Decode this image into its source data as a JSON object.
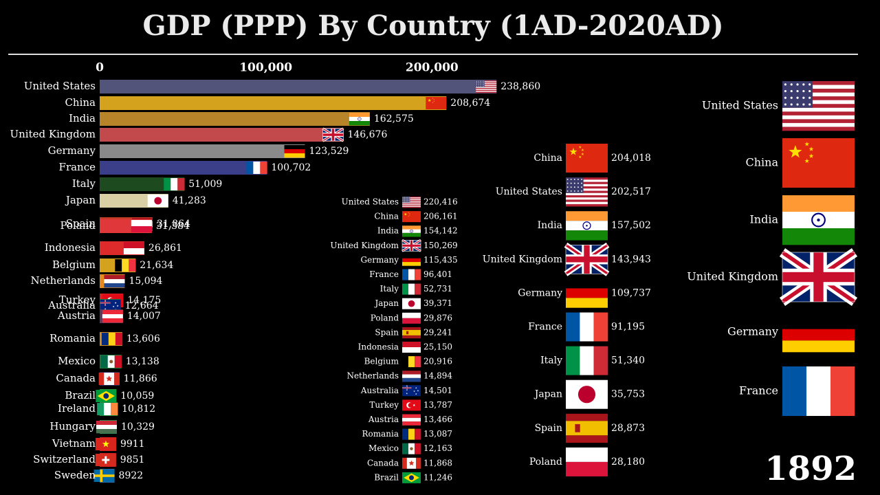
{
  "title": "GDP (PPP) By Country (1AD-2020AD)",
  "year": "1892",
  "chart_data": [
    {
      "type": "bar",
      "orientation": "horizontal",
      "axis_ticks": [
        "0",
        "100,000",
        "200,000"
      ],
      "xlim": [
        0,
        240000
      ],
      "categories": [
        "United States",
        "China",
        "India",
        "United Kingdom",
        "Germany",
        "France",
        "Italy",
        "Japan",
        "Spain",
        "Poland",
        "Indonesia",
        "Belgium",
        "Netherlands",
        "Turkey",
        "Australia",
        "Austria",
        "Romania",
        "Mexico",
        "Canada",
        "Brazil",
        "Ireland",
        "Hungary",
        "Vietnam",
        "Switzerland",
        "Sweden"
      ],
      "values": [
        238860,
        208674,
        162575,
        146676,
        123529,
        100702,
        51009,
        41283,
        31864,
        31384,
        26861,
        21634,
        15094,
        14175,
        12664,
        14007,
        13606,
        13138,
        11866,
        10059,
        10812,
        10329,
        9911,
        9851,
        8922
      ],
      "value_labels": [
        "238,860",
        "208,674",
        "162,575",
        "146,676",
        "123,529",
        "100,702",
        "51,009",
        "41,283",
        "31,864",
        "31,384",
        "26,861",
        "21,634",
        "15,094",
        "14,175",
        "12,664",
        "14,007",
        "13,606",
        "13,138",
        "11,866",
        "10,059",
        "10,812",
        "10,329",
        "9911",
        "9851",
        "8922"
      ],
      "colors": [
        "#52547a",
        "#d4a21c",
        "#b8842a",
        "#c24a4c",
        "#8a8a8a",
        "#3b3f8a",
        "#1e4a20",
        "#d9cfa4",
        "#c43a26",
        "#e0383a",
        "#dd2a2a",
        "#d4a21c",
        "#e08a20",
        "#d82020",
        "#1a7a3a",
        "#5a3a5a",
        "#d08a20",
        "#1a7a3a",
        "#2a2a5a",
        "#2a9a3a",
        "#1a8a3a",
        "#2a8a4a",
        "#d82020",
        "#d82020",
        "#2a6aaa"
      ],
      "flags": [
        "us",
        "cn",
        "in",
        "gb",
        "de",
        "fr",
        "it",
        "jp",
        "es",
        "pl",
        "id",
        "be",
        "nl",
        "tr",
        "au",
        "at",
        "ro",
        "mx",
        "ca",
        "br",
        "ie",
        "hu",
        "vn",
        "ch",
        "se"
      ]
    },
    {
      "type": "table",
      "categories": [
        "United States",
        "China",
        "India",
        "United Kingdom",
        "Germany",
        "France",
        "Italy",
        "Japan",
        "Poland",
        "Spain",
        "Indonesia",
        "Belgium",
        "Netherlands",
        "Australia",
        "Turkey",
        "Austria",
        "Romania",
        "Mexico",
        "Canada",
        "Brazil"
      ],
      "value_labels": [
        "220,416",
        "206,161",
        "154,142",
        "150,269",
        "115,435",
        "96,401",
        "52,731",
        "39,371",
        "29,876",
        "29,241",
        "25,150",
        "20,916",
        "14,894",
        "14,501",
        "13,787",
        "13,466",
        "13,087",
        "12,163",
        "11,868",
        "11,246"
      ],
      "flags": [
        "us",
        "cn",
        "in",
        "gb",
        "de",
        "fr",
        "it",
        "jp",
        "pl",
        "es",
        "id",
        "be",
        "nl",
        "au",
        "tr",
        "at",
        "ro",
        "mx",
        "ca",
        "br"
      ]
    },
    {
      "type": "table",
      "categories": [
        "China",
        "United States",
        "India",
        "United Kingdom",
        "Germany",
        "France",
        "Italy",
        "Japan",
        "Spain",
        "Poland"
      ],
      "value_labels": [
        "204,018",
        "202,517",
        "157,502",
        "143,943",
        "109,737",
        "91,195",
        "51,340",
        "35,753",
        "28,873",
        "28,180"
      ],
      "flags": [
        "cn",
        "us",
        "in",
        "gb",
        "de",
        "fr",
        "it",
        "jp",
        "es",
        "pl"
      ]
    },
    {
      "type": "table",
      "categories": [
        "United States",
        "China",
        "India",
        "United Kingdom",
        "Germany",
        "France"
      ],
      "flags": [
        "us",
        "cn",
        "in",
        "gb",
        "de",
        "fr"
      ]
    }
  ]
}
